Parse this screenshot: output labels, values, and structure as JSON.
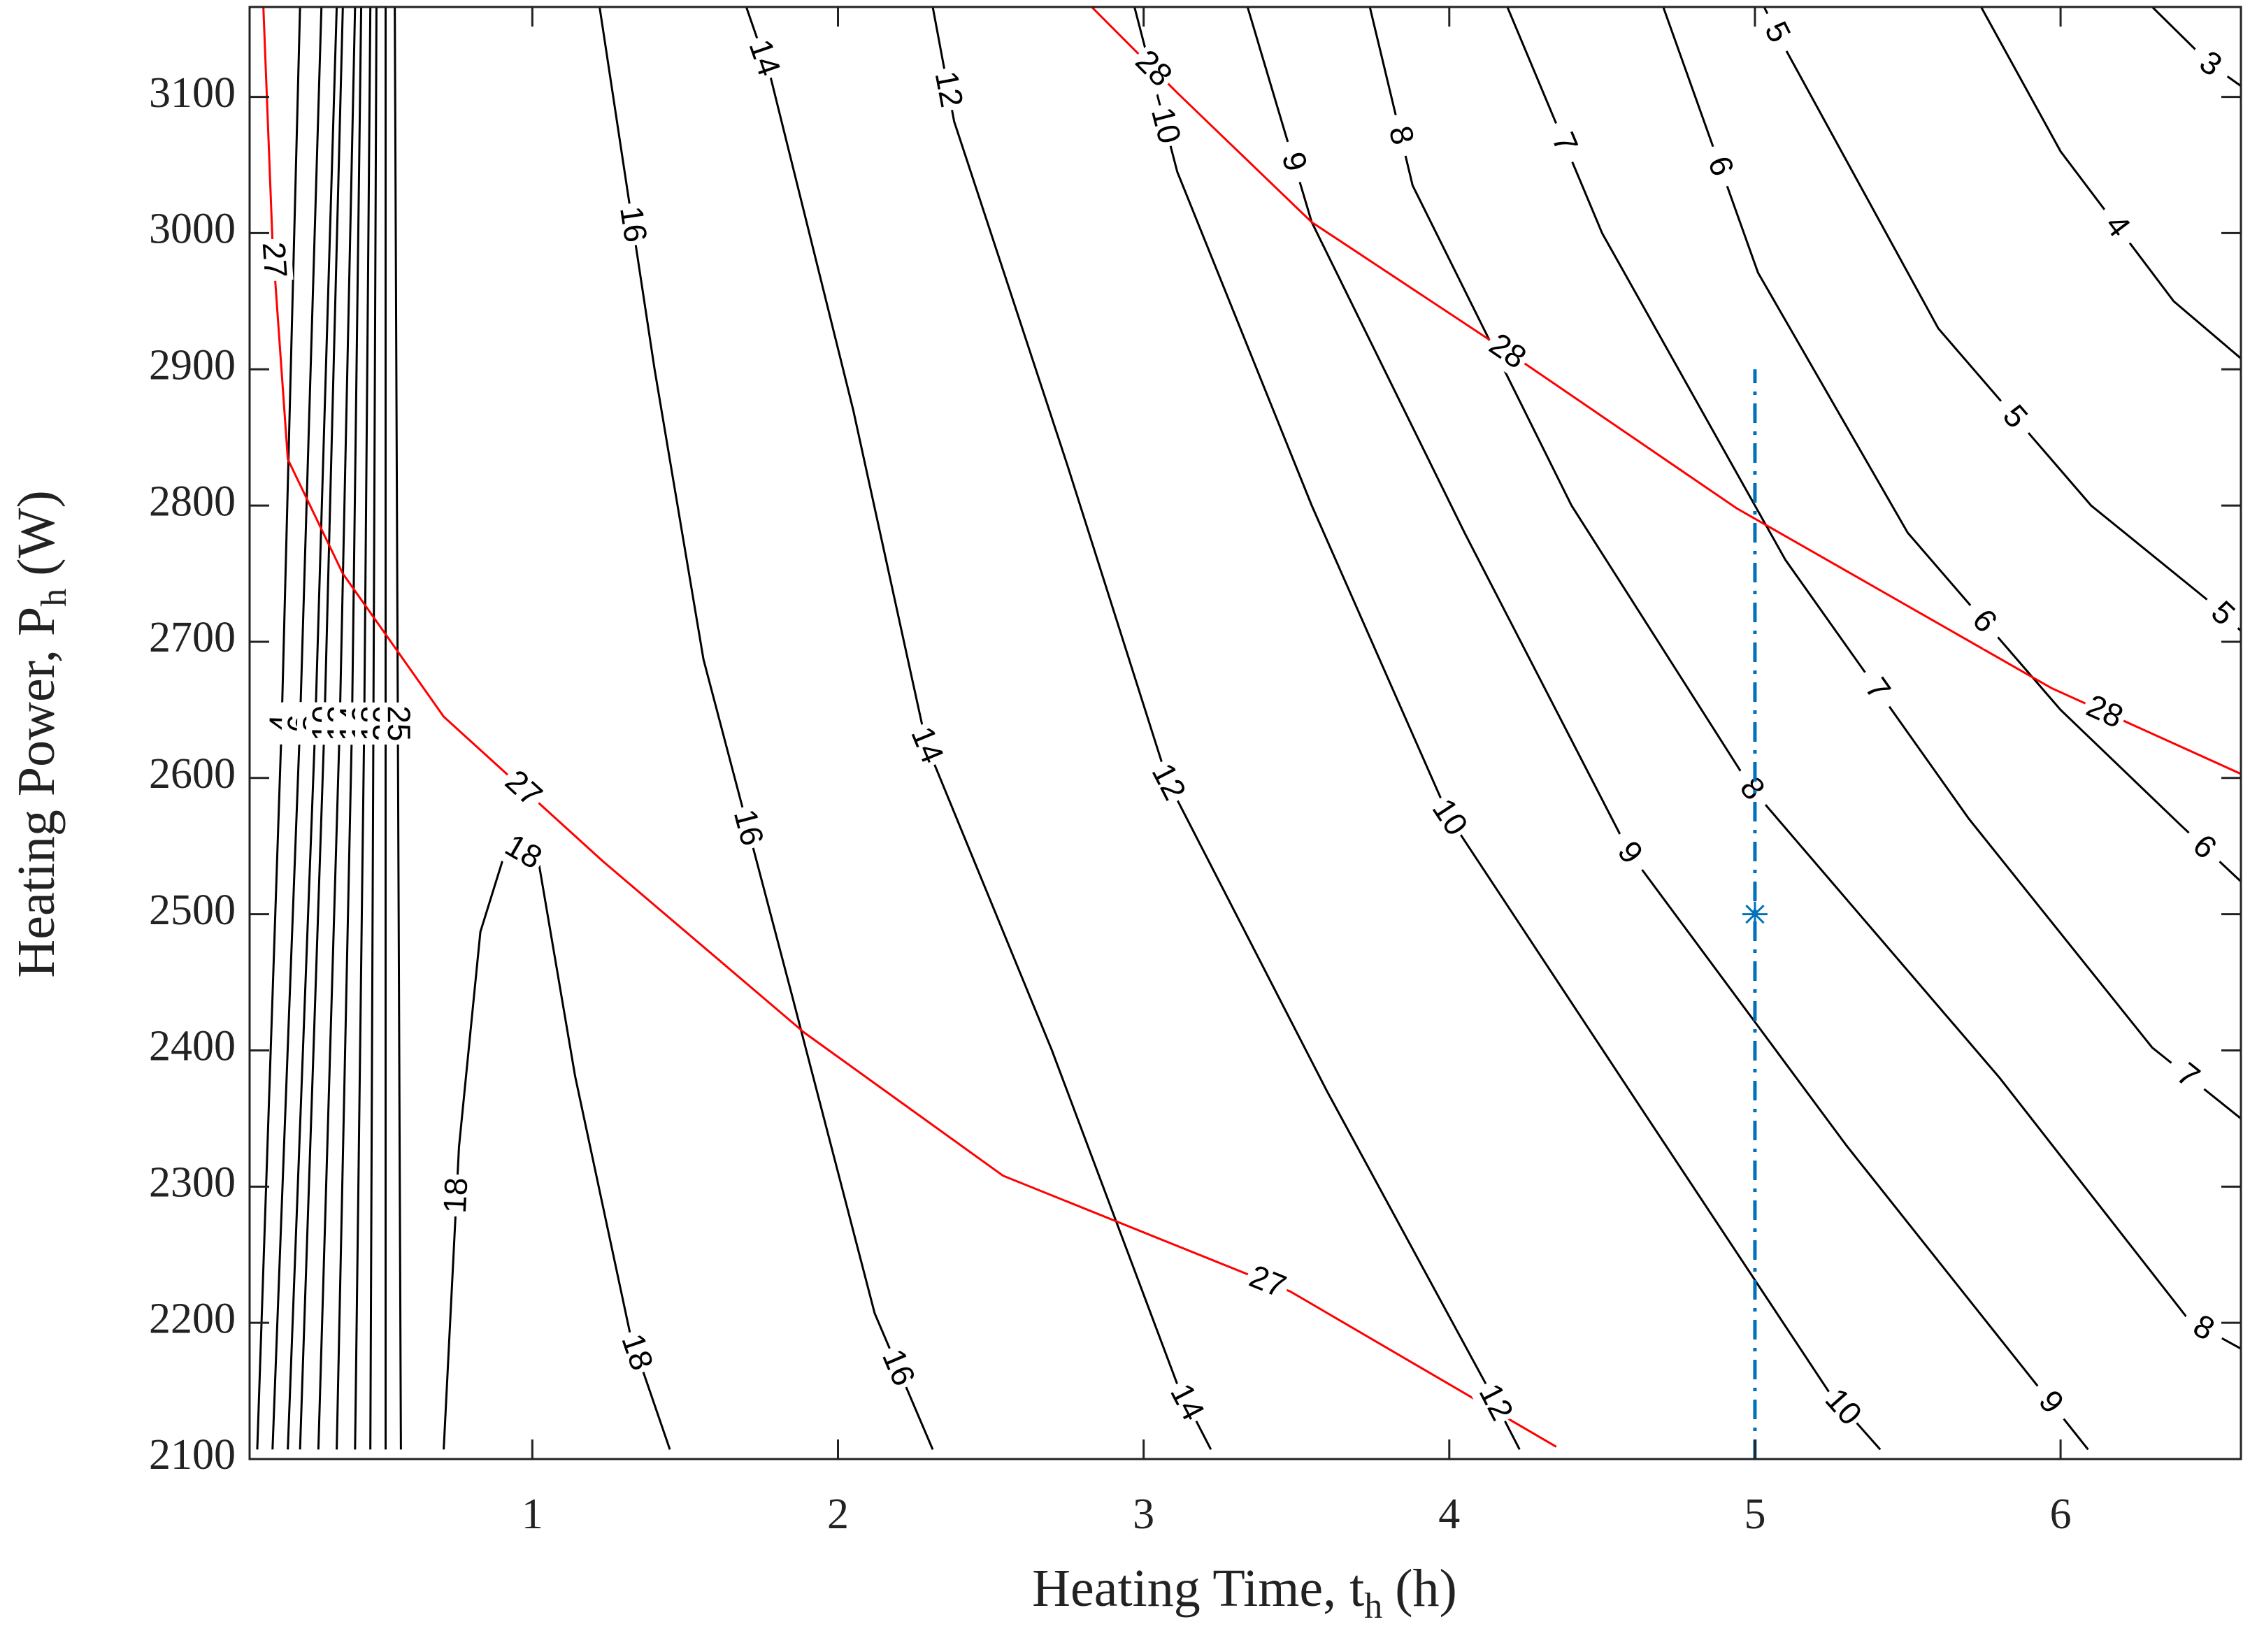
{
  "chart_data": {
    "type": "contour",
    "x_label": [
      "Heating Time, t",
      "h",
      "(h)"
    ],
    "y_label": [
      "Heating Power, P",
      "h",
      "(W)"
    ],
    "xlim": [
      0.075,
      6.59
    ],
    "ylim": [
      2100,
      3166
    ],
    "xticks": [
      1,
      2,
      3,
      4,
      5,
      6
    ],
    "yticks": [
      2100,
      2200,
      2300,
      2400,
      2500,
      2600,
      2700,
      2800,
      2900,
      3000,
      3100
    ],
    "contours": [
      {
        "level": 16,
        "color": "#000000",
        "x": [
          1.22,
          1.4,
          1.56,
          1.85,
          2.12,
          2.31
        ],
        "y": [
          3166,
          2900,
          2687,
          2440,
          2207,
          2107
        ]
      },
      {
        "level": 14,
        "color": "#000000",
        "x": [
          1.7,
          1.78,
          2.05,
          2.29,
          2.7,
          3.11,
          3.22
        ],
        "y": [
          3166,
          3114,
          2870,
          2624,
          2400,
          2155,
          2107
        ]
      },
      {
        "level": 12,
        "color": "#000000",
        "x": [
          2.31,
          2.38,
          2.75,
          3.08,
          3.6,
          4.12,
          4.23
        ],
        "y": [
          3166,
          3082,
          2830,
          2597,
          2370,
          2155,
          2107
        ]
      },
      {
        "level": 10,
        "color": "#000000",
        "x": [
          2.97,
          3.11,
          3.55,
          4.0,
          4.65,
          5.24,
          5.41
        ],
        "y": [
          3166,
          3045,
          2800,
          2571,
          2350,
          2150,
          2107
        ]
      },
      {
        "level": 9,
        "color": "#000000",
        "x": [
          3.34,
          3.55,
          4.05,
          4.59,
          5.3,
          5.92,
          6.09
        ],
        "y": [
          3166,
          3008,
          2780,
          2545,
          2330,
          2155,
          2107
        ]
      },
      {
        "level": 8,
        "color": "#000000",
        "x": [
          3.74,
          3.88,
          4.4,
          4.99,
          5.8,
          6.42,
          6.59
        ],
        "y": [
          3166,
          3035,
          2800,
          2592,
          2380,
          2202,
          2181
        ]
      },
      {
        "level": 7,
        "color": "#000000",
        "x": [
          4.19,
          4.5,
          5.1,
          5.7,
          6.3,
          6.59
        ],
        "y": [
          3166,
          3000,
          2760,
          2570,
          2402,
          2350
        ]
      },
      {
        "level": 6,
        "color": "#000000",
        "x": [
          4.7,
          5.01,
          5.5,
          6.0,
          6.39,
          6.59
        ],
        "y": [
          3166,
          2971,
          2780,
          2650,
          2566,
          2524
        ]
      },
      {
        "level": 5,
        "color": "#000000",
        "x": [
          5.03,
          5.1,
          5.6,
          6.1,
          6.49,
          6.59
        ],
        "y": [
          3166,
          3135,
          2930,
          2800,
          2729,
          2708
        ]
      },
      {
        "level": 4,
        "color": "#000000",
        "x": [
          5.74,
          6.0,
          6.37,
          6.59
        ],
        "y": [
          3166,
          3060,
          2950,
          2908
        ]
      },
      {
        "level": 3,
        "color": "#000000",
        "x": [
          6.3,
          6.49,
          6.59
        ],
        "y": [
          3166,
          3124,
          3108
        ]
      },
      {
        "level": 18,
        "color": "#000000",
        "x": [
          0.71,
          0.76,
          0.83,
          0.92,
          1.02,
          1.14,
          1.32,
          1.45
        ],
        "y": [
          2107,
          2329,
          2487,
          2552,
          2539,
          2381,
          2192,
          2107
        ]
      },
      {
        "level": 4,
        "color": "#000000",
        "x": [
          0.1,
          0.18,
          0.24
        ],
        "y": [
          2107,
          2640,
          3166
        ]
      },
      {
        "level": 6,
        "color": "#000000",
        "x": [
          0.15,
          0.24,
          0.31
        ],
        "y": [
          2107,
          2640,
          3166
        ]
      },
      {
        "level": 8,
        "color": "#000000",
        "x": [
          0.2,
          0.29,
          0.36
        ],
        "y": [
          2107,
          2640,
          3166
        ]
      },
      {
        "level": 10,
        "color": "#000000",
        "x": [
          0.24,
          0.32,
          0.38
        ],
        "y": [
          2107,
          2640,
          3166
        ]
      },
      {
        "level": 12,
        "color": "#000000",
        "x": [
          0.3,
          0.37,
          0.42
        ],
        "y": [
          2107,
          2640,
          3166
        ]
      },
      {
        "level": 14,
        "color": "#000000",
        "x": [
          0.36,
          0.41,
          0.44
        ],
        "y": [
          2107,
          2640,
          3166
        ]
      },
      {
        "level": 16,
        "color": "#000000",
        "x": [
          0.42,
          0.45,
          0.47
        ],
        "y": [
          2107,
          2640,
          3166
        ]
      },
      {
        "level": 18,
        "color": "#000000",
        "x": [
          0.47,
          0.48,
          0.49
        ],
        "y": [
          2107,
          2640,
          3166
        ]
      },
      {
        "level": 20,
        "color": "#000000",
        "x": [
          0.52,
          0.52,
          0.52
        ],
        "y": [
          2107,
          2640,
          3166
        ]
      },
      {
        "level": 25,
        "color": "#000000",
        "x": [
          0.57,
          0.56,
          0.55
        ],
        "y": [
          2107,
          2640,
          3166
        ]
      },
      {
        "level": 27,
        "color": "#ff0000",
        "x": [
          0.12,
          0.15,
          0.2,
          0.38,
          0.71,
          1.23,
          1.89,
          2.54,
          3.48,
          4.35
        ],
        "y": [
          3166,
          2993,
          2834,
          2750,
          2645,
          2539,
          2413,
          2308,
          2223,
          2109
        ]
      },
      {
        "level": 28,
        "color": "#ff0000",
        "x": [
          2.83,
          3.11,
          3.55,
          4.19,
          4.94,
          5.97,
          6.59
        ],
        "y": [
          3166,
          3103,
          3008,
          2913,
          2798,
          2666,
          2603
        ]
      }
    ],
    "vline": {
      "x": 5,
      "y": [
        2100,
        2900
      ],
      "color": "#0072bd"
    },
    "marker": {
      "x": 5,
      "y": 2500,
      "color": "#0072bd"
    }
  }
}
